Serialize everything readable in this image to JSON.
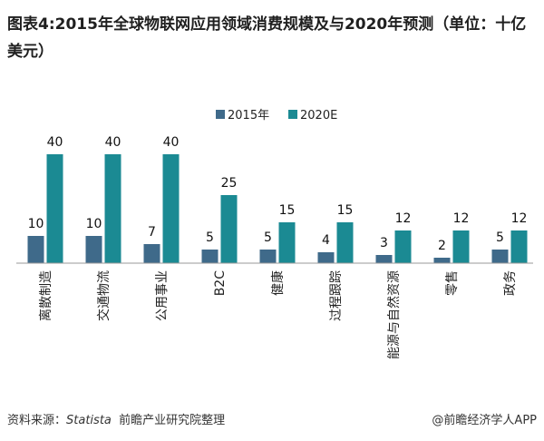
{
  "chart_data": {
    "type": "bar",
    "title": "图表4:2015年全球物联网应用领域消费规模及与2020年预测（单位：十亿美元）",
    "categories": [
      "离散制造",
      "交通物流",
      "公用事业",
      "B2C",
      "健康",
      "过程跟踪",
      "能源与自然资源",
      "零售",
      "政务"
    ],
    "series": [
      {
        "name": "2015年",
        "values": [
          10,
          10,
          7,
          5,
          5,
          4,
          3,
          2,
          5
        ],
        "color": "#3f6a8a"
      },
      {
        "name": "2020E",
        "values": [
          40,
          40,
          40,
          25,
          15,
          15,
          12,
          12,
          12
        ],
        "color": "#1b8a93"
      }
    ],
    "ylim": [
      0,
      40
    ],
    "xlabel": "",
    "ylabel": "",
    "grid": false,
    "legend": "top-right"
  },
  "source": {
    "prefix": "资料来源：",
    "name": "Statista",
    "org": "前瞻产业研究院整理"
  },
  "watermark": "@前瞻经济学人APP"
}
